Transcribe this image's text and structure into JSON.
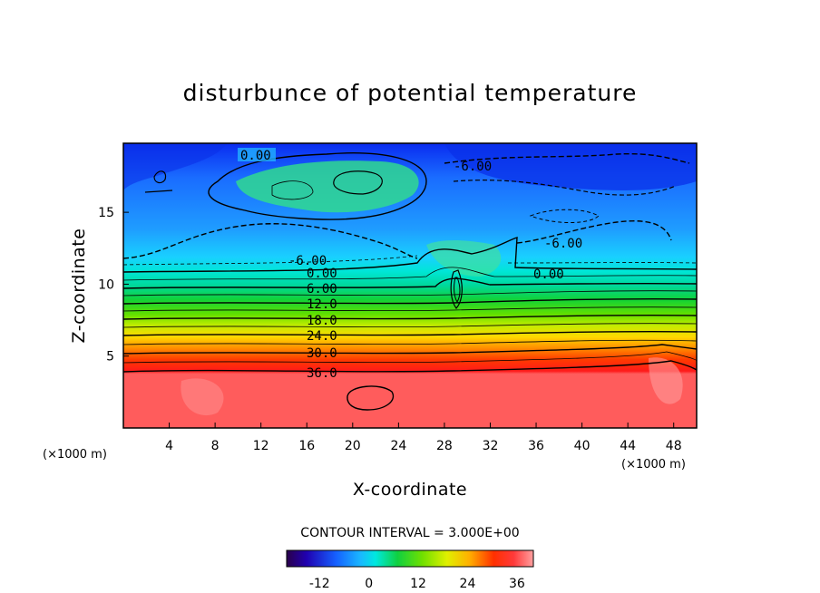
{
  "chart_data": {
    "type": "heatmap",
    "title": "disturbunce of potential temperature",
    "xlabel": "X-coordinate",
    "ylabel": "Z-coordinate",
    "x_unit": "(×1000 m)",
    "z_unit": "(×1000 m)",
    "xlim": [
      0,
      50
    ],
    "ylim": [
      0,
      19.8
    ],
    "x_ticks": [
      "4",
      "8",
      "12",
      "16",
      "20",
      "24",
      "28",
      "32",
      "36",
      "40",
      "44",
      "48"
    ],
    "y_ticks": [
      "5",
      "10",
      "15"
    ],
    "contour_interval_text": "CONTOUR INTERVAL = 3.000E+00",
    "contour_labels": [
      "0.00",
      "-6.00",
      "-6.00",
      "-6.00",
      "0.00",
      "6.00",
      "12.0",
      "18.0",
      "24.0",
      "30.0",
      "36.0",
      "0.00"
    ],
    "colorbar": {
      "range": [
        -20,
        40
      ],
      "ticks": [
        "-12",
        "0",
        "12",
        "24",
        "36"
      ]
    },
    "layers": [
      {
        "z": 0,
        "value": 39
      },
      {
        "z": 4,
        "value": 36
      },
      {
        "z": 5,
        "value": 30
      },
      {
        "z": 6.5,
        "value": 24
      },
      {
        "z": 8,
        "value": 15
      },
      {
        "z": 9.5,
        "value": 6
      },
      {
        "z": 11,
        "value": 0
      },
      {
        "z": 13,
        "value": -6
      },
      {
        "z": 16,
        "value": -6
      },
      {
        "z": 19.8,
        "value": -10
      }
    ]
  },
  "colors": {
    "warm_floor": "#ff5c5c",
    "cold_top": "#1448ff",
    "contour": "#000000"
  }
}
